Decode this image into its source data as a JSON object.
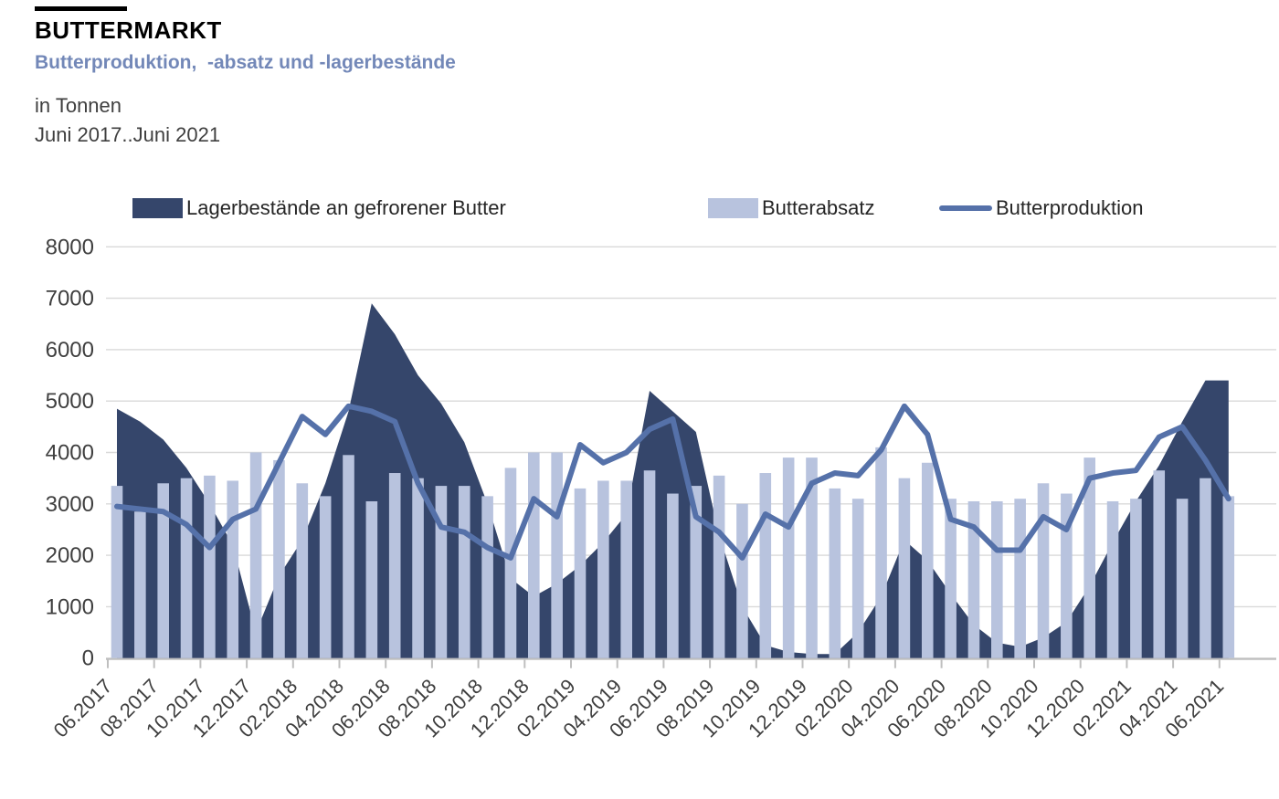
{
  "header": {
    "title": "BUTTERMARKT",
    "subtitle": "Butterproduktion,  -absatz und -lagerbestände",
    "unit": "in Tonnen",
    "period": "Juni 2017..Juni 2021"
  },
  "colors": {
    "stocks_area": "#35466b",
    "sales_bars": "#b8c3de",
    "production_line": "#5571a9",
    "grid": "#d9d9d9",
    "axis": "#bfbfbf",
    "tick_text": "#3f3f3f",
    "subtitle_text": "#7388b8"
  },
  "chart_data": {
    "type": "combo (area + bar + line)",
    "title": "Butterproduktion, -absatz und -lagerbestände",
    "ylabel": "Tonnen",
    "ylim": [
      0,
      8000
    ],
    "ytick_step": 1000,
    "grid": true,
    "legend_position": "top",
    "xtick_label_every": 2,
    "categories": [
      "06.2017",
      "07.2017",
      "08.2017",
      "09.2017",
      "10.2017",
      "11.2017",
      "12.2017",
      "01.2018",
      "02.2018",
      "03.2018",
      "04.2018",
      "05.2018",
      "06.2018",
      "07.2018",
      "08.2018",
      "09.2018",
      "10.2018",
      "11.2018",
      "12.2018",
      "01.2019",
      "02.2019",
      "03.2019",
      "04.2019",
      "05.2019",
      "06.2019",
      "07.2019",
      "08.2019",
      "09.2019",
      "10.2019",
      "11.2019",
      "12.2019",
      "01.2020",
      "02.2020",
      "03.2020",
      "04.2020",
      "05.2020",
      "06.2020",
      "07.2020",
      "08.2020",
      "09.2020",
      "10.2020",
      "11.2020",
      "12.2020",
      "01.2021",
      "02.2021",
      "03.2021",
      "04.2021",
      "05.2021",
      "06.2021"
    ],
    "series": [
      {
        "name": "Lagerbestände an gefrorener Butter",
        "type": "area",
        "color": "#35466b",
        "values": [
          4850,
          4600,
          4250,
          3700,
          3000,
          2200,
          500,
          1600,
          2300,
          3400,
          4800,
          6900,
          6300,
          5500,
          4950,
          4200,
          3000,
          1550,
          1200,
          1450,
          1800,
          2250,
          2800,
          5200,
          4800,
          4400,
          2400,
          1000,
          250,
          120,
          80,
          80,
          500,
          1200,
          2300,
          1900,
          1250,
          650,
          300,
          220,
          400,
          700,
          1400,
          2250,
          3050,
          3750,
          4600,
          5400,
          5400
        ]
      },
      {
        "name": "Butterabsatz",
        "type": "bar",
        "color": "#b8c3de",
        "values": [
          3350,
          2850,
          3400,
          3500,
          3550,
          3450,
          4000,
          3850,
          3400,
          3150,
          3950,
          3050,
          3600,
          3500,
          3350,
          3350,
          3150,
          3700,
          4000,
          4000,
          3300,
          3450,
          3450,
          3650,
          3200,
          3350,
          3550,
          3000,
          3600,
          3900,
          3900,
          3300,
          3100,
          4100,
          3500,
          3800,
          3100,
          3050,
          3050,
          3100,
          3400,
          3200,
          3900,
          3050,
          3100,
          3650,
          3100,
          3500,
          3150
        ]
      },
      {
        "name": "Butterproduktion",
        "type": "line",
        "color": "#5571a9",
        "values": [
          2950,
          2900,
          2850,
          2600,
          2150,
          2700,
          2900,
          3800,
          4700,
          4350,
          4900,
          4800,
          4600,
          3400,
          2550,
          2450,
          2150,
          1950,
          3100,
          2750,
          4150,
          3800,
          4000,
          4450,
          4650,
          2750,
          2450,
          1950,
          2800,
          2550,
          3400,
          3600,
          3550,
          4050,
          4900,
          4350,
          2700,
          2550,
          2100,
          2100,
          2750,
          2500,
          3500,
          3600,
          3650,
          4300,
          4500,
          3850,
          3100
        ]
      }
    ]
  },
  "legend": {
    "items": [
      {
        "label": "Lagerbestände an gefrorener Butter",
        "swatch": "rect",
        "color": "#35466b",
        "x": 145
      },
      {
        "label": "Butterabsatz",
        "swatch": "rect",
        "color": "#b8c3de",
        "x": 775
      },
      {
        "label": "Butterproduktion",
        "swatch": "line",
        "color": "#5571a9",
        "x": 1028
      }
    ]
  }
}
